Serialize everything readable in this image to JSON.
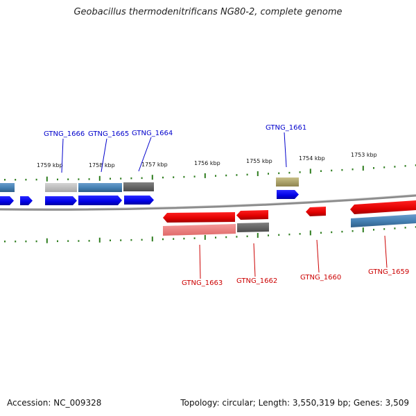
{
  "title": "Geobacillus thermodenitrificans NG80-2, complete genome",
  "footer": {
    "accession": "Accession: NC_009328",
    "summary": "Topology: circular; Length: 3,550,319 bp; Genes: 3,509"
  },
  "colors": {
    "plus_strand_label": "#0000cc",
    "minus_strand_label": "#cc0000",
    "genome_line": "#808080",
    "ticks": "#2e7d1e"
  },
  "scale_ticks": [
    "1759 kbp",
    "1758 kbp",
    "1757 kbp",
    "1756 kbp",
    "1755 kbp",
    "1754 kbp",
    "1753 kbp"
  ],
  "gene_labels_top": [
    "GTNG_1666",
    "GTNG_1665",
    "GTNG_1664",
    "GTNG_1661"
  ],
  "gene_labels_bottom": [
    "GTNG_1663",
    "GTNG_1662",
    "GTNG_1660",
    "GTNG_1659"
  ]
}
